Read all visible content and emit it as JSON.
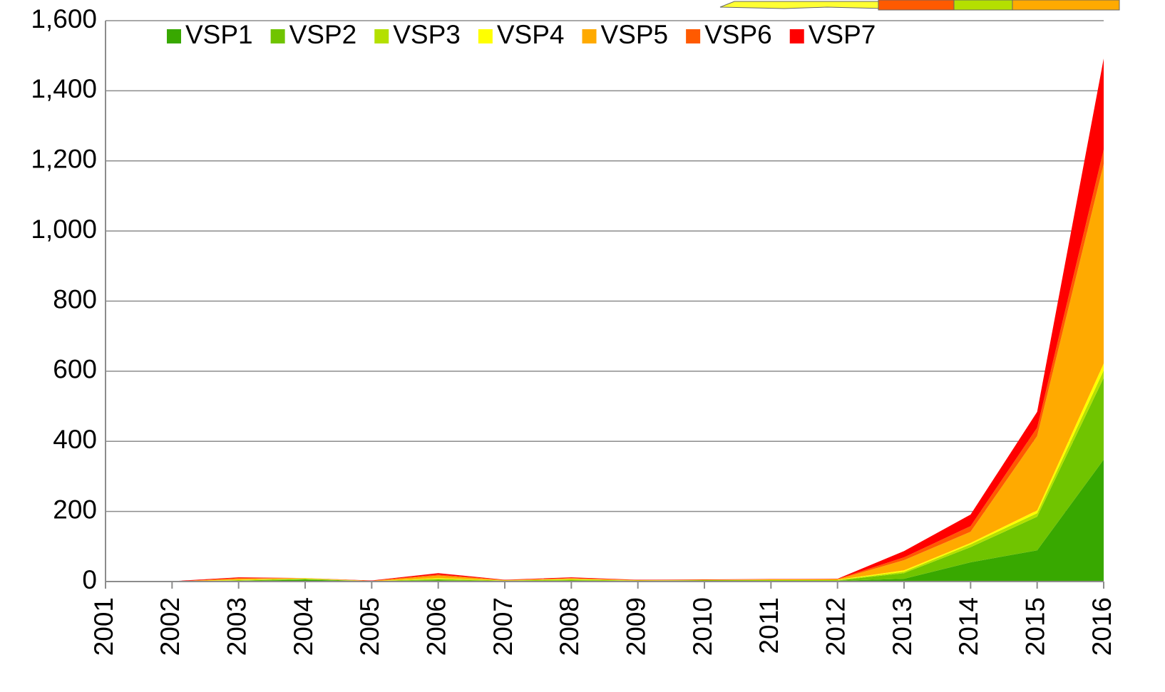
{
  "chart_data": {
    "type": "stacked_area",
    "categories": [
      "2001",
      "2002",
      "2003",
      "2004",
      "2005",
      "2006",
      "2007",
      "2008",
      "2009",
      "2010",
      "2011",
      "2012",
      "2013",
      "2014",
      "2015",
      "2016"
    ],
    "series": [
      {
        "name": "VSP1",
        "color": "#38a800",
        "values": [
          0,
          0,
          2,
          5,
          1,
          3,
          1,
          2,
          1,
          2,
          2,
          2,
          8,
          55,
          89,
          348
        ]
      },
      {
        "name": "VSP2",
        "color": "#70c400",
        "values": [
          0,
          0,
          1,
          2,
          0,
          3,
          1,
          2,
          1,
          1,
          1,
          1,
          16,
          43,
          96,
          233
        ]
      },
      {
        "name": "VSP3",
        "color": "#b4e000",
        "values": [
          0,
          0,
          1,
          1,
          0,
          2,
          1,
          2,
          1,
          1,
          1,
          1,
          4,
          8,
          10,
          21
        ]
      },
      {
        "name": "VSP4",
        "color": "#ffff00",
        "values": [
          0,
          0,
          1,
          1,
          0,
          2,
          0,
          1,
          0,
          0,
          1,
          1,
          4,
          4,
          8,
          20
        ]
      },
      {
        "name": "VSP5",
        "color": "#ffaa00",
        "values": [
          1,
          0,
          3,
          1,
          1,
          7,
          1,
          2,
          1,
          1,
          1,
          1,
          29,
          32,
          212,
          569
        ]
      },
      {
        "name": "VSP6",
        "color": "#ff5a00",
        "values": [
          0,
          0,
          2,
          0,
          0,
          3,
          0,
          1,
          0,
          0,
          0,
          1,
          8,
          16,
          24,
          41
        ]
      },
      {
        "name": "VSP7",
        "color": "#ff0000",
        "values": [
          1,
          1,
          2,
          0,
          1,
          4,
          1,
          2,
          1,
          1,
          1,
          1,
          18,
          33,
          45,
          260
        ]
      }
    ],
    "ylim": [
      0,
      1600
    ],
    "yticks": [
      0,
      200,
      400,
      600,
      800,
      {
        "value": 1000,
        "label": "1,000"
      },
      {
        "value": 1200,
        "label": "1,200"
      },
      {
        "value": 1400,
        "label": "1,400"
      },
      {
        "value": 1600,
        "label": "1,600"
      }
    ],
    "grid": true,
    "legend": "top"
  }
}
